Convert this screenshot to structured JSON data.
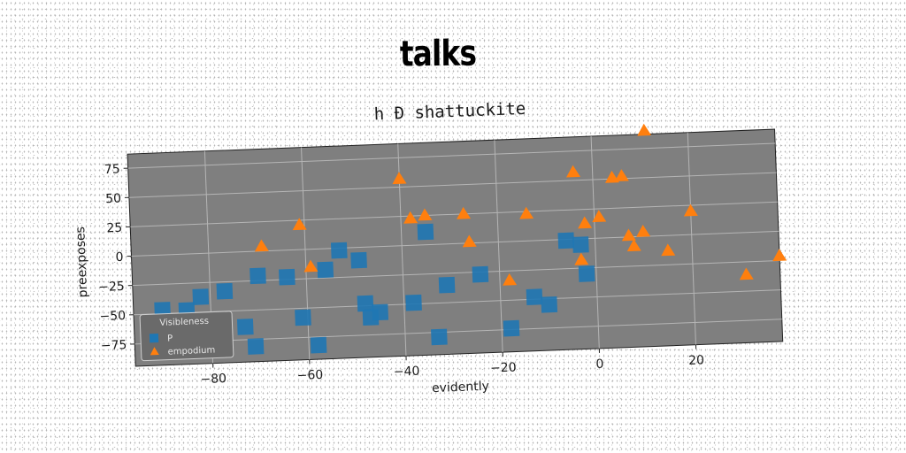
{
  "figure_title": "talks",
  "chart_data": {
    "type": "scatter",
    "title": "h Ð shattuckite",
    "xlabel": "evidently",
    "ylabel": "preexposes",
    "xlim": [
      -96,
      38
    ],
    "ylim": [
      -94,
      87
    ],
    "xticks": [
      -80,
      -60,
      -40,
      -20,
      0,
      20
    ],
    "yticks": [
      -75,
      -50,
      -25,
      0,
      25,
      50,
      75
    ],
    "grid": true,
    "legend_position": "lower-left",
    "legend_title": "Visibleness",
    "colors": {
      "plot_background": "#7f7f7f",
      "grid": "#b5b5b5",
      "series_1": "#1f77b4",
      "series_2": "#ff7f0e"
    },
    "series": [
      {
        "name": "P",
        "marker": "square",
        "color": "#1f77b4",
        "x": [
          -90,
          -85,
          -82,
          -77,
          -73,
          -71,
          -70,
          -64,
          -61,
          -58,
          -56,
          -53,
          -49,
          -48,
          -47,
          -45,
          -38,
          -35,
          -33,
          -31,
          -24,
          -18,
          -13,
          -10,
          -6,
          -3,
          -2
        ],
        "y": [
          -47,
          -48,
          -37,
          -33,
          -64,
          -81,
          -21,
          -23,
          -58,
          -82,
          -18,
          -2,
          -11,
          -48,
          -60,
          -56,
          -49,
          11,
          -79,
          -35,
          -27,
          -74,
          -48,
          -55,
          -1,
          -5,
          -30
        ]
      },
      {
        "name": "empodium",
        "marker": "triangle",
        "color": "#ff7f0e",
        "x": [
          -69,
          -61,
          -59,
          -40,
          -38,
          -35,
          -27,
          -26,
          -18,
          -14,
          -4,
          -3,
          -2,
          1,
          4,
          6,
          7,
          8,
          10,
          11,
          15,
          20,
          31,
          38
        ],
        "y": [
          4,
          21,
          -15,
          57,
          23,
          25,
          25,
          1,
          -33,
          23,
          57,
          -18,
          13,
          18,
          51,
          52,
          1,
          -8,
          4,
          90,
          -13,
          20,
          -36,
          -21
        ]
      }
    ]
  }
}
